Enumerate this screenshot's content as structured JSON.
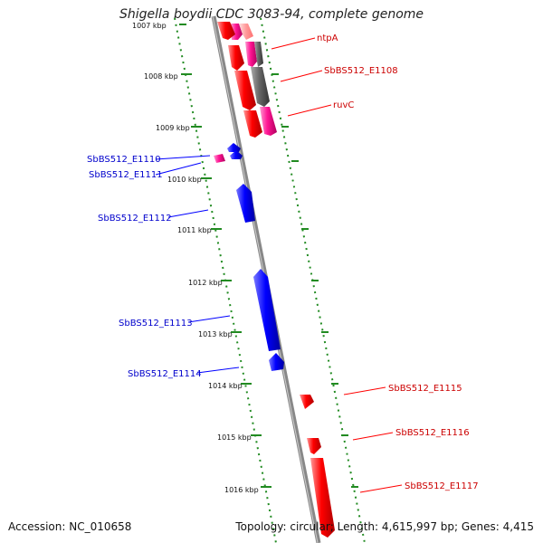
{
  "title": "Shigella boydii CDC 3083-94, complete genome",
  "accession": "Accession: NC_010658",
  "topology": "Topology: circular; Length: 4,615,997 bp; Genes: 4,415",
  "colors": {
    "forward": "#ff0000",
    "reverse": "#0000ff",
    "pink": "#ff1493",
    "gray": "#666666",
    "scale": "#228b22",
    "backbone": "#888888"
  },
  "ruler": {
    "ticks": [
      "1007 kbp",
      "1008 kbp",
      "1009 kbp",
      "1010 kbp",
      "1011 kbp",
      "1012 kbp",
      "1013 kbp",
      "1014 kbp",
      "1015 kbp",
      "1016 kbp"
    ]
  },
  "labels": {
    "right": [
      "ntpA",
      "SbBS512_E1108",
      "ruvC",
      "SbBS512_E1115",
      "SbBS512_E1116",
      "SbBS512_E1117"
    ],
    "left": [
      "SbBS512_E1110",
      "SbBS512_E1111",
      "SbBS512_E1112",
      "SbBS512_E1113",
      "SbBS512_E1114"
    ]
  }
}
